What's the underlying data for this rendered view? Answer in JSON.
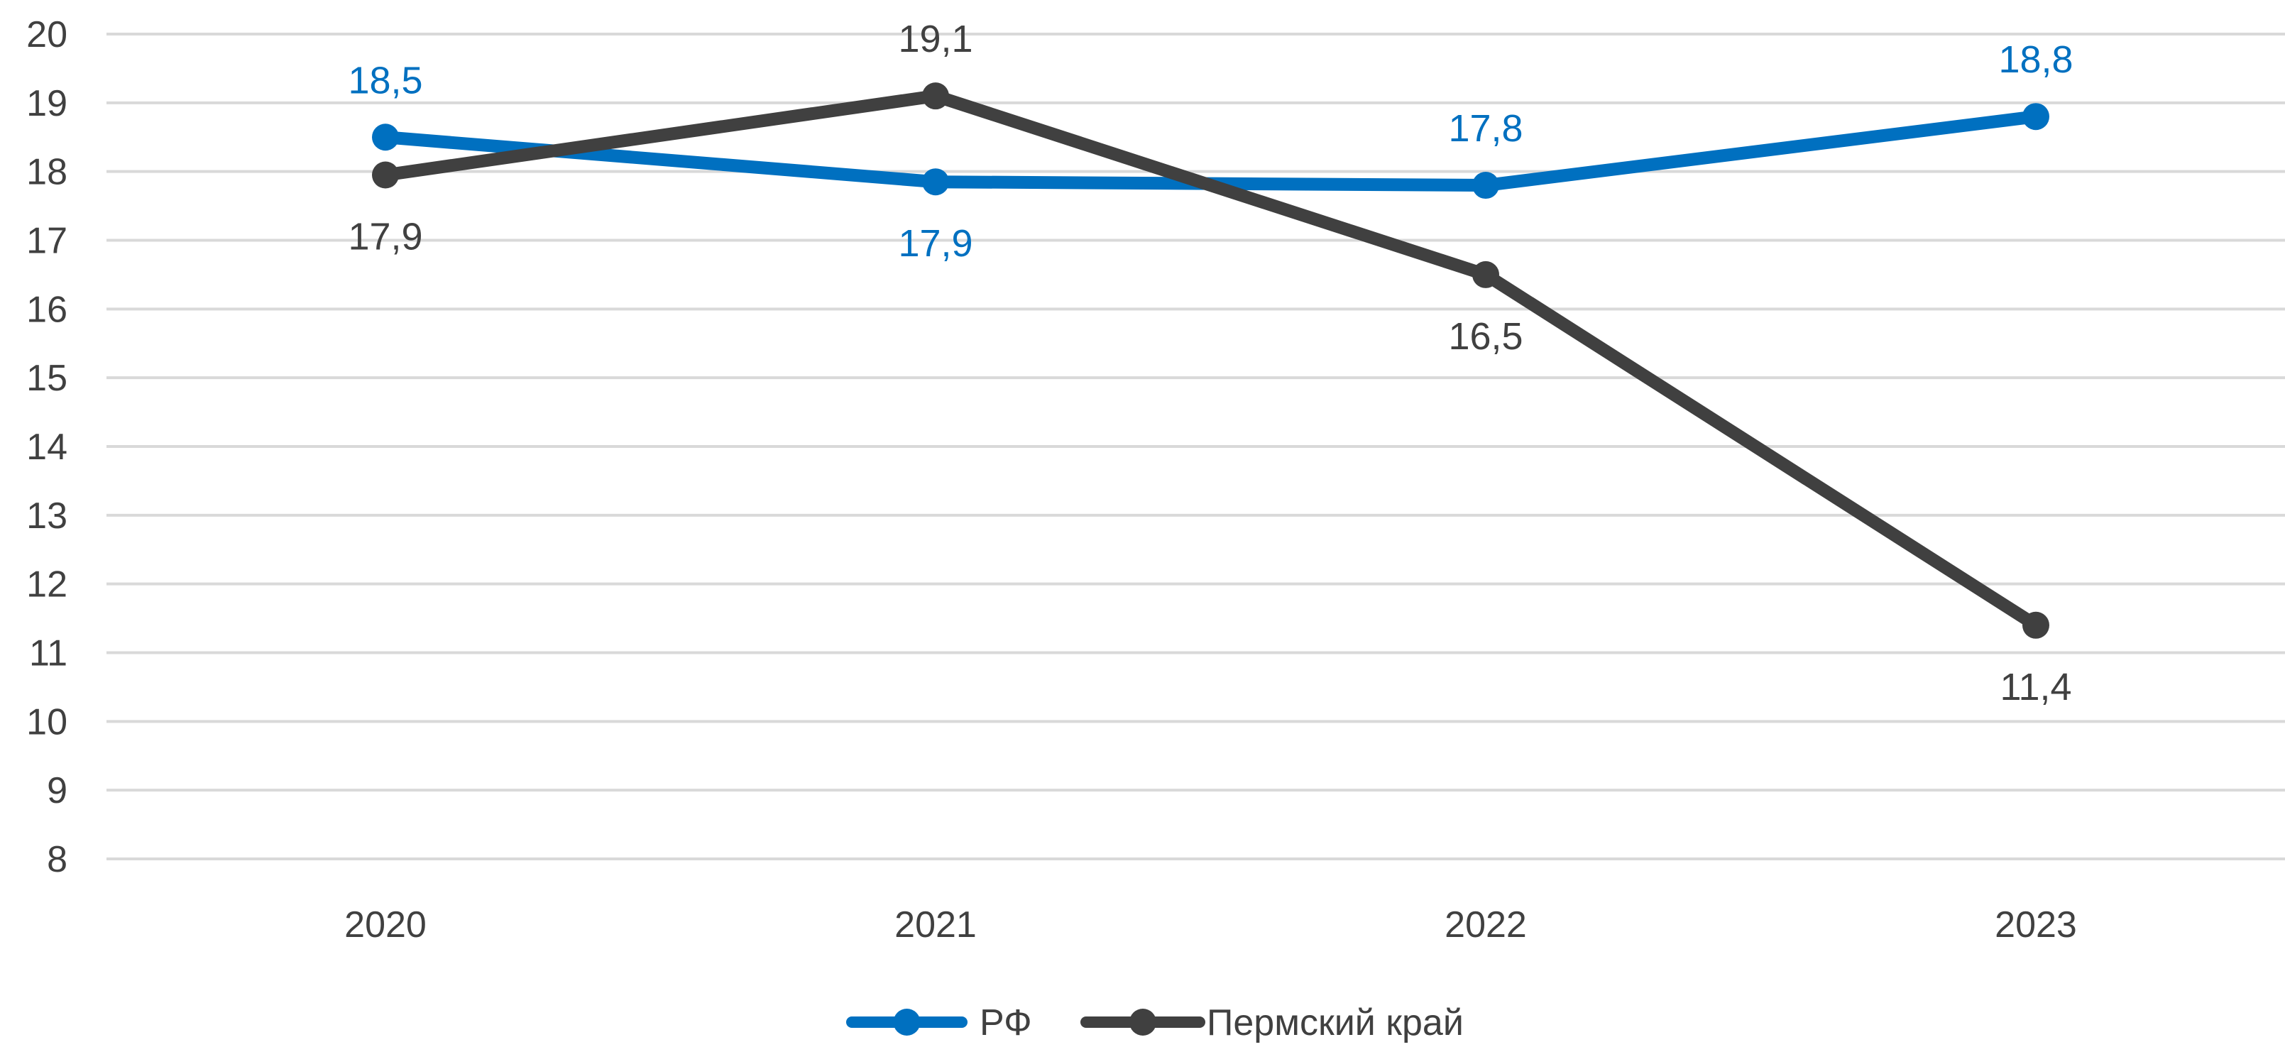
{
  "chart_data": {
    "type": "line",
    "categories": [
      "2020",
      "2021",
      "2022",
      "2023"
    ],
    "ylim": [
      8,
      20
    ],
    "yticks": [
      "8",
      "9",
      "10",
      "11",
      "12",
      "13",
      "14",
      "15",
      "16",
      "17",
      "18",
      "19",
      "20"
    ],
    "grid": true,
    "legend_position": "bottom",
    "series": [
      {
        "name": "РФ",
        "color": "#0070C0",
        "values": [
          18.5,
          17.85,
          17.8,
          18.8
        ],
        "labels": [
          "18,5",
          "17,9",
          "17,8",
          "18,8"
        ],
        "label_side": [
          "above",
          "below",
          "above",
          "above"
        ]
      },
      {
        "name": "Пермский край",
        "color": "#404040",
        "values": [
          17.95,
          19.1,
          16.5,
          11.4
        ],
        "labels": [
          "17,9",
          "19,1",
          "16,5",
          "11,4"
        ],
        "label_side": [
          "below",
          "above",
          "below",
          "below"
        ]
      }
    ]
  }
}
